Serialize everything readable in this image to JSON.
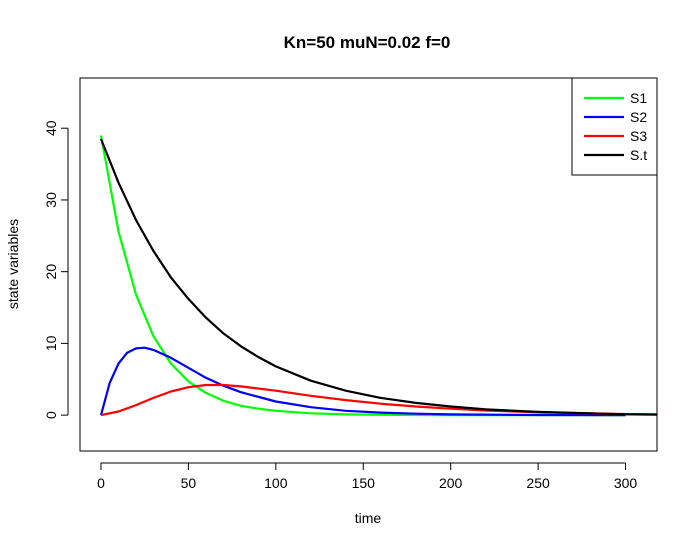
{
  "chart_data": {
    "type": "line",
    "title": "Kn=50  muN=0.02  f=0",
    "xlabel": "time",
    "ylabel": "state variables",
    "xlim": [
      -12,
      318
    ],
    "ylim": [
      -5,
      47
    ],
    "xticks": [
      0,
      50,
      100,
      150,
      200,
      250,
      300
    ],
    "yticks": [
      0,
      10,
      20,
      30,
      40
    ],
    "legend_position": "top-right",
    "grid": false,
    "series": [
      {
        "name": "S1",
        "color": "#00ff00",
        "x": [
          0,
          10,
          20,
          30,
          40,
          50,
          60,
          70,
          80,
          90,
          100,
          120,
          140,
          160,
          180,
          200,
          250,
          300
        ],
        "y": [
          39,
          25.6,
          16.8,
          11.0,
          7.2,
          4.7,
          3.1,
          2.0,
          1.3,
          0.9,
          0.6,
          0.25,
          0.1,
          0.05,
          0.02,
          0.01,
          0,
          0
        ]
      },
      {
        "name": "S2",
        "color": "#0000ff",
        "x": [
          0,
          5,
          10,
          15,
          20,
          25,
          30,
          40,
          50,
          60,
          70,
          80,
          100,
          120,
          140,
          160,
          180,
          200,
          250,
          300
        ],
        "y": [
          0,
          4.5,
          7.2,
          8.7,
          9.3,
          9.4,
          9.1,
          8.0,
          6.6,
          5.2,
          4.1,
          3.2,
          1.9,
          1.1,
          0.6,
          0.35,
          0.2,
          0.1,
          0.02,
          0
        ]
      },
      {
        "name": "S3",
        "color": "#ff0000",
        "x": [
          0,
          10,
          20,
          30,
          40,
          50,
          60,
          70,
          80,
          100,
          120,
          140,
          160,
          180,
          200,
          220,
          250,
          300,
          318
        ],
        "y": [
          0,
          0.5,
          1.4,
          2.4,
          3.3,
          3.9,
          4.2,
          4.2,
          4.0,
          3.4,
          2.7,
          2.1,
          1.6,
          1.2,
          0.9,
          0.65,
          0.4,
          0.15,
          0.1
        ]
      },
      {
        "name": "S.t",
        "color": "#000000",
        "x": [
          0,
          10,
          20,
          30,
          40,
          50,
          60,
          70,
          80,
          90,
          100,
          120,
          140,
          160,
          180,
          200,
          220,
          250,
          300,
          318
        ],
        "y": [
          38.5,
          32.4,
          27.2,
          22.9,
          19.2,
          16.2,
          13.6,
          11.4,
          9.6,
          8.1,
          6.8,
          4.8,
          3.4,
          2.4,
          1.7,
          1.2,
          0.8,
          0.45,
          0.12,
          0.08
        ]
      }
    ]
  }
}
